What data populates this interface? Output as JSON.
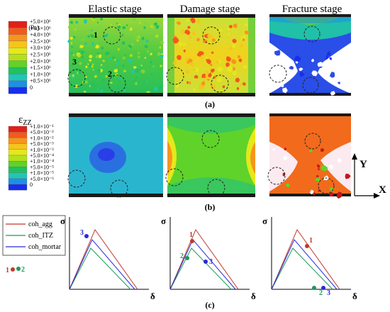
{
  "stage_titles": [
    "Elastic stage",
    "Damage stage",
    "Fracture stage"
  ],
  "top_legend": {
    "symbol": "σ",
    "subscript": "ZZ",
    "unit": "(Pa)",
    "ticks": [
      "+5.0×10⁶",
      "+4.5×10⁶",
      "+4.0×10⁶",
      "+3.5×10⁶",
      "+3.0×10⁶",
      "+2.5×10⁶",
      "+2.0×10⁶",
      "+1.5×10⁶",
      "+1.0×10⁶",
      "+0.5×10⁶",
      "0"
    ],
    "colors": [
      "#e0201c",
      "#f25a1c",
      "#f7941d",
      "#f5c51c",
      "#e4e81c",
      "#b4e01c",
      "#5fd32a",
      "#21c060",
      "#1fc7b4",
      "#1f8fe6",
      "#1a2ee8"
    ]
  },
  "mid_legend": {
    "symbol": "ε",
    "subscript": "ZZ",
    "ticks": [
      "+1.0×10⁻¹",
      "+5.0×10⁻²",
      "+1.0×10⁻²",
      "+5.0×10⁻³",
      "+1.0×10⁻³",
      "+5.0×10⁻⁴",
      "+1.0×10⁻⁴",
      "+5.0×10⁻⁵",
      "+1.0×10⁻⁵",
      "+5.0×10⁻⁶",
      "0"
    ],
    "colors": [
      "#e0201c",
      "#f25a1c",
      "#f7941d",
      "#f5c51c",
      "#e4e81c",
      "#b4e01c",
      "#5fd32a",
      "#21c060",
      "#1fc7b4",
      "#1f8fe6",
      "#1a2ee8"
    ]
  },
  "elastic_markers": [
    "1",
    "2",
    "3"
  ],
  "sub_labels": [
    "(a)",
    "(b)",
    "(c)"
  ],
  "axes_icon": {
    "y": "Y",
    "x": "X"
  },
  "curve_legend": [
    {
      "label": "coh_agg",
      "color": "#c0392b"
    },
    {
      "label": "coh_ITZ",
      "color": "#1a9a5c"
    },
    {
      "label": "coh_mortar",
      "color": "#2a2ad6"
    }
  ],
  "axis_labels": {
    "y": "σ",
    "x": "δ"
  },
  "point_labels": [
    "1",
    "2",
    "3"
  ]
}
